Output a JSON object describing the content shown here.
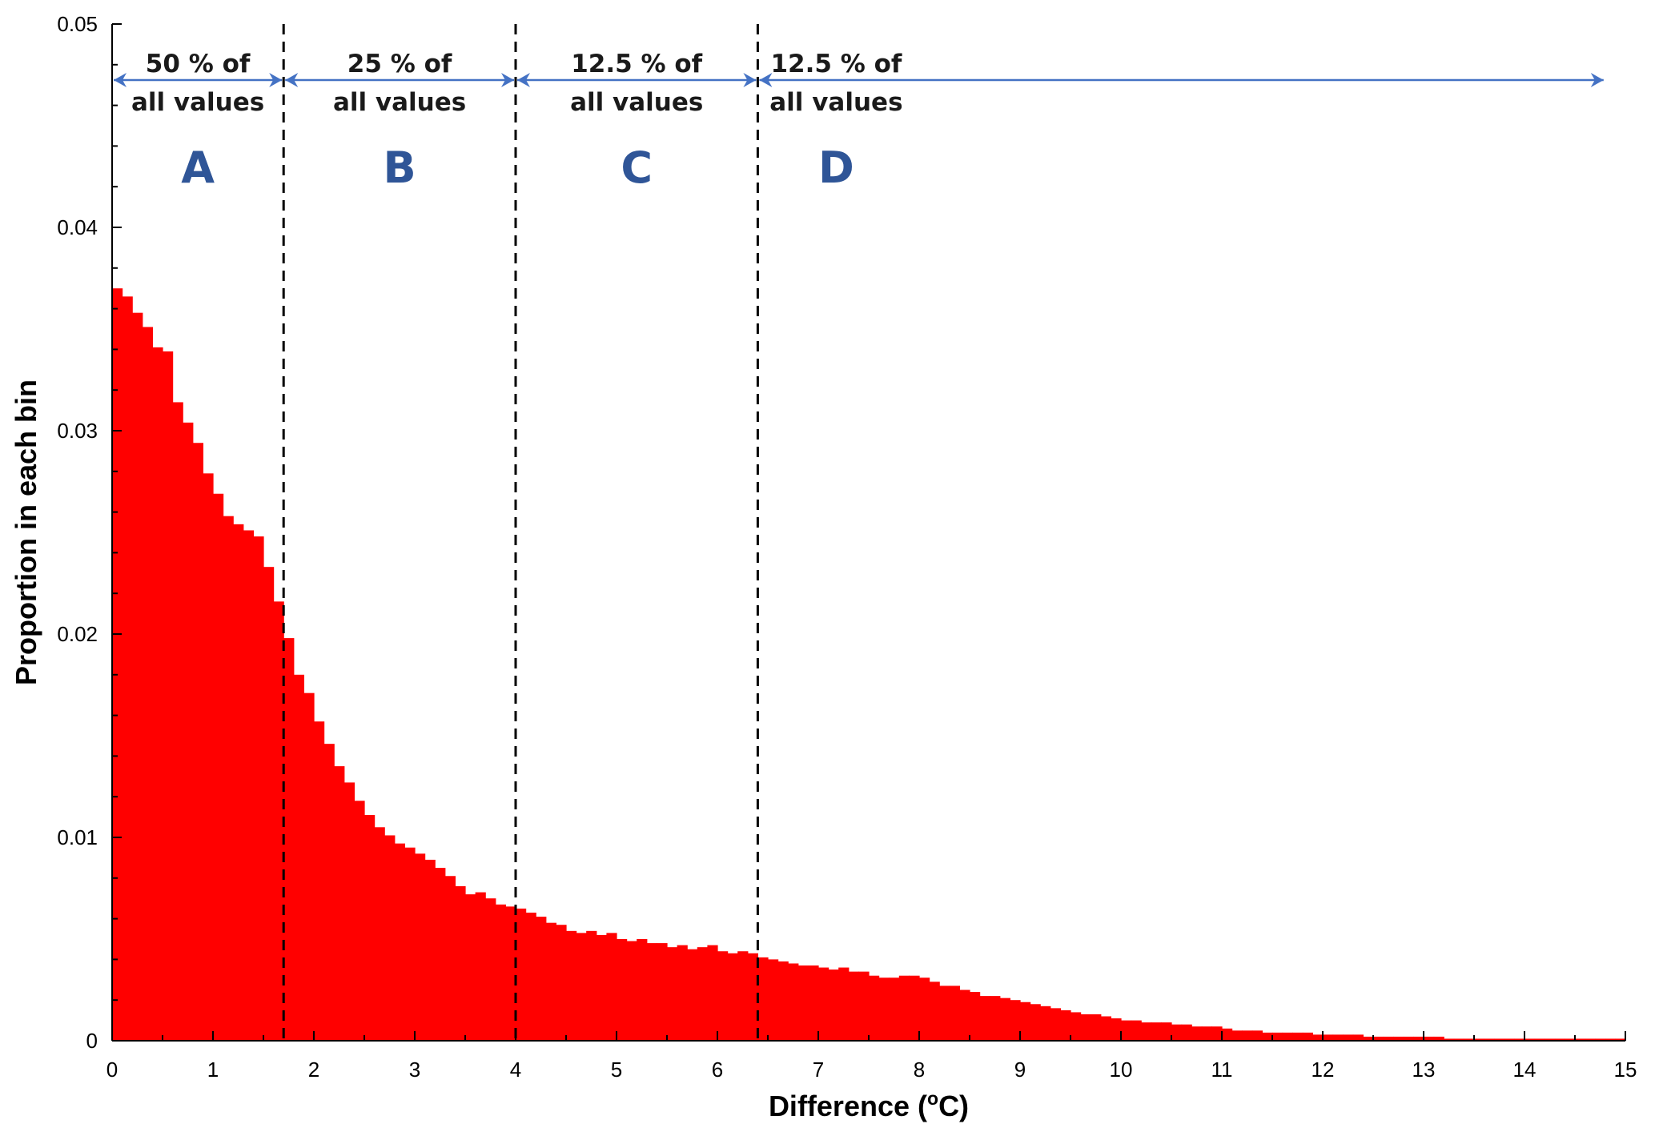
{
  "chart_data": {
    "type": "bar",
    "title": "",
    "xlabel": "Difference (",
    "xlabel_sup": "o",
    "xlabel_tail": "C)",
    "ylabel": "Proportion in each bin",
    "xlim": [
      0,
      15
    ],
    "ylim": [
      0,
      0.05
    ],
    "bin_width": 0.1,
    "x_ticks": [
      "0",
      "1",
      "2",
      "3",
      "4",
      "5",
      "6",
      "7",
      "8",
      "9",
      "10",
      "11",
      "12",
      "13",
      "14",
      "15"
    ],
    "y_ticks": [
      "0",
      "0.01",
      "0.02",
      "0.03",
      "0.04",
      "0.05"
    ],
    "bar_color": "#ff0000",
    "grid": false,
    "legend": "none",
    "values": [
      0.037,
      0.0366,
      0.0358,
      0.0351,
      0.0341,
      0.0339,
      0.0314,
      0.0304,
      0.0294,
      0.0279,
      0.0269,
      0.0258,
      0.0254,
      0.0251,
      0.0248,
      0.0233,
      0.0216,
      0.0198,
      0.018,
      0.0171,
      0.0157,
      0.0146,
      0.0135,
      0.0127,
      0.0118,
      0.0111,
      0.0105,
      0.0101,
      0.0097,
      0.0095,
      0.0092,
      0.0089,
      0.0085,
      0.0081,
      0.0076,
      0.0072,
      0.0073,
      0.007,
      0.0067,
      0.0066,
      0.0065,
      0.0063,
      0.0061,
      0.0058,
      0.0057,
      0.0054,
      0.0053,
      0.0054,
      0.0052,
      0.0053,
      0.005,
      0.0049,
      0.005,
      0.0048,
      0.0048,
      0.0046,
      0.0047,
      0.0045,
      0.0046,
      0.0047,
      0.0044,
      0.0043,
      0.0044,
      0.0043,
      0.0041,
      0.004,
      0.0039,
      0.0038,
      0.0037,
      0.0037,
      0.0036,
      0.0035,
      0.0036,
      0.0034,
      0.0034,
      0.0032,
      0.0031,
      0.0031,
      0.0032,
      0.0032,
      0.0031,
      0.0029,
      0.0027,
      0.0027,
      0.0025,
      0.0024,
      0.0022,
      0.0022,
      0.0021,
      0.002,
      0.0019,
      0.0018,
      0.0017,
      0.0016,
      0.0015,
      0.0014,
      0.0013,
      0.0013,
      0.0012,
      0.0011,
      0.001,
      0.001,
      0.0009,
      0.0009,
      0.0009,
      0.0008,
      0.0008,
      0.0007,
      0.0007,
      0.0007,
      0.0006,
      0.0005,
      0.0005,
      0.0005,
      0.0004,
      0.0004,
      0.0004,
      0.0004,
      0.0004,
      0.0003,
      0.0003,
      0.0003,
      0.0003,
      0.0003,
      0.0002,
      0.0002,
      0.0002,
      0.0002,
      0.0002,
      0.0002,
      0.0002,
      0.0002,
      0.0001,
      0.0001,
      0.0001,
      0.0001,
      0.0001,
      0.0001,
      0.0001,
      0.0001,
      0.0001,
      0.0001,
      0.0001,
      0.0001,
      0.0001,
      0.0001,
      0.0001,
      0.0001,
      0.0001,
      0.0001
    ],
    "divider_lines": [
      1.7,
      4.0,
      6.4
    ],
    "regions": [
      {
        "letter": "A",
        "line1": "50 % of",
        "line2": "all values",
        "x_start": 0,
        "x_end": 1.7
      },
      {
        "letter": "B",
        "line1": "25 % of",
        "line2": "all values",
        "x_start": 1.7,
        "x_end": 4.0
      },
      {
        "letter": "C",
        "line1": "12.5 % of",
        "line2": "all values",
        "x_start": 4.0,
        "x_end": 6.4
      },
      {
        "letter": "D",
        "line1": "12.5 % of",
        "line2": "all values",
        "x_start": 6.4,
        "x_end": 14.8
      }
    ],
    "arrow_color": "#4472c4",
    "letter_color": "#2f5597"
  }
}
